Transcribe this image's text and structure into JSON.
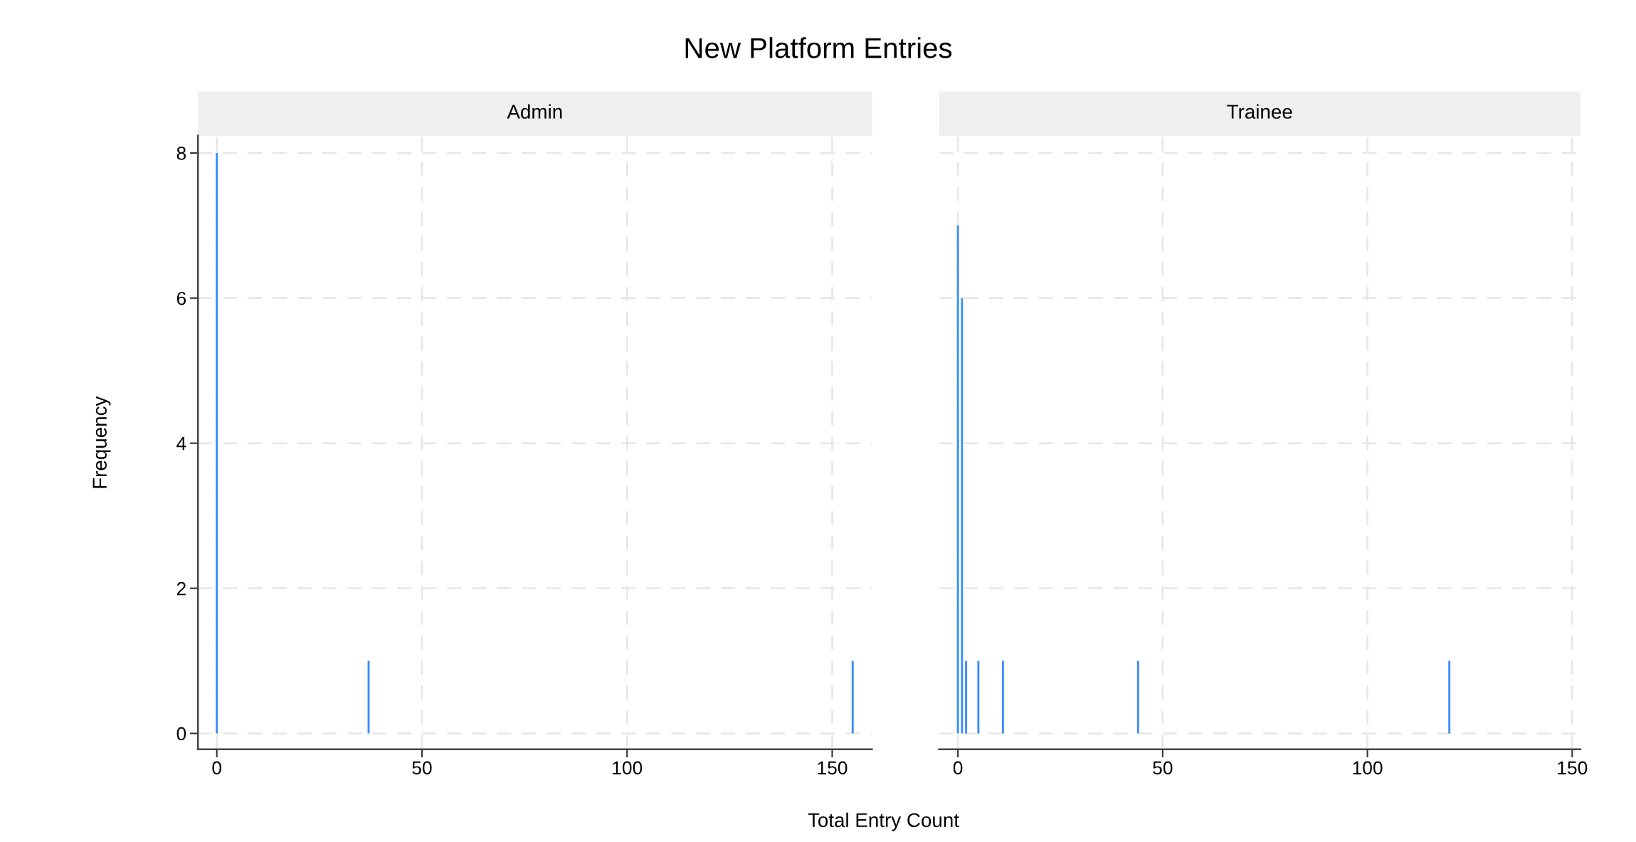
{
  "chart_data": [
    {
      "type": "bar",
      "title": "New Platform Entries",
      "subtitle": "Admin",
      "xlabel": "Total Entry Count",
      "ylabel": "Frequency",
      "x": [
        0,
        37,
        155
      ],
      "values": [
        8,
        1,
        1
      ],
      "color": "#3a8dfa",
      "xlim": [
        -4.6,
        159.7
      ],
      "xticks": [
        0,
        50,
        100,
        150
      ],
      "ylim": [
        -0.22,
        8.24
      ],
      "yticks": [
        0,
        2,
        4,
        6,
        8
      ],
      "grid": true
    },
    {
      "type": "bar",
      "subtitle": "Trainee",
      "x": [
        0,
        1,
        2,
        5,
        11,
        44,
        120
      ],
      "values": [
        7,
        6,
        1,
        1,
        1,
        1,
        1
      ],
      "color": "#3a8dfa",
      "xlim": [
        -4.6,
        152
      ],
      "xticks": [
        0,
        50,
        100,
        150
      ],
      "ylim": [
        -0.22,
        8.24
      ],
      "yticks": [
        0,
        2,
        4,
        6,
        8
      ],
      "grid": true,
      "tick_labels": "x"
    }
  ]
}
